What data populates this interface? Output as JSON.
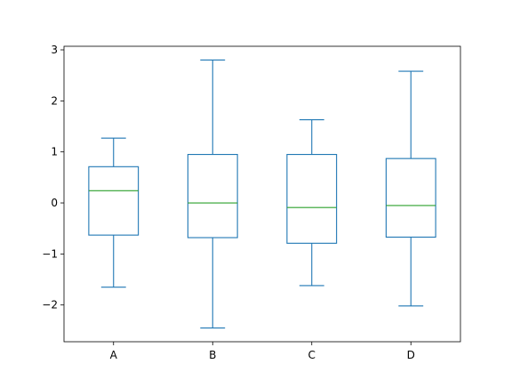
{
  "chart_data": {
    "type": "box",
    "title": "",
    "xlabel": "",
    "ylabel": "",
    "categories": [
      "A",
      "B",
      "C",
      "D"
    ],
    "boxes": [
      {
        "name": "A",
        "whisker_low": -1.65,
        "q1": -0.63,
        "median": 0.24,
        "q3": 0.71,
        "whisker_high": 1.27
      },
      {
        "name": "B",
        "whisker_low": -2.45,
        "q1": -0.68,
        "median": 0.0,
        "q3": 0.95,
        "whisker_high": 2.8
      },
      {
        "name": "C",
        "whisker_low": -1.62,
        "q1": -0.79,
        "median": -0.09,
        "q3": 0.95,
        "whisker_high": 1.63
      },
      {
        "name": "D",
        "whisker_low": -2.02,
        "q1": -0.67,
        "median": -0.05,
        "q3": 0.87,
        "whisker_high": 2.58
      }
    ],
    "ylim": [
      -2.72,
      3.07
    ],
    "yticks": [
      3,
      2,
      1,
      0,
      -1,
      -2
    ],
    "ytick_labels": [
      "3",
      "2",
      "1",
      "0",
      "−1",
      "−2"
    ],
    "grid": false,
    "legend": false,
    "colors": {
      "box": "#1f77b4",
      "median": "#2ca02c",
      "axis": "#000000"
    }
  }
}
